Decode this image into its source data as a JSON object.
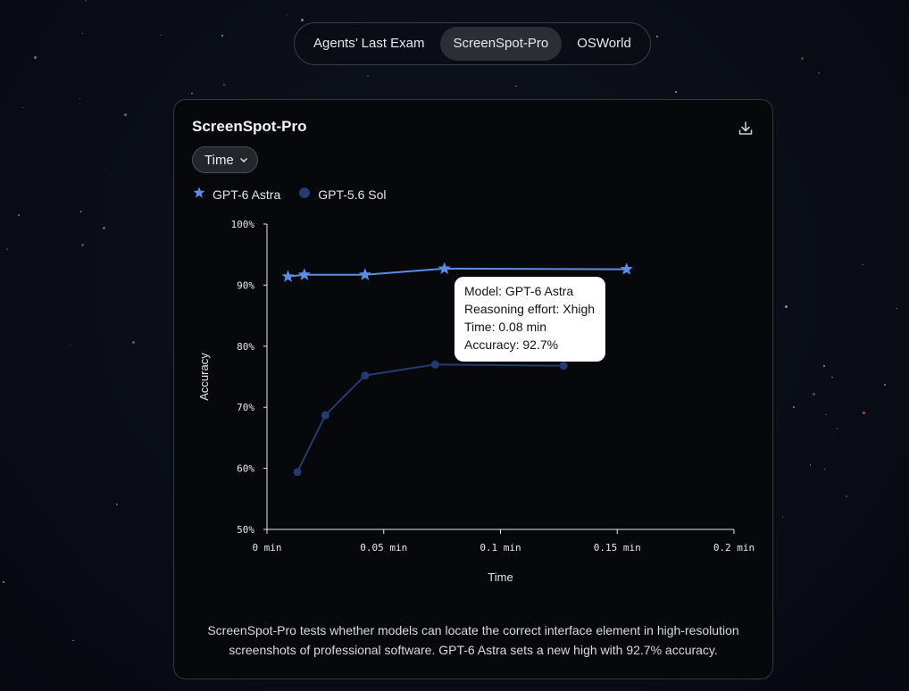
{
  "tabs": [
    {
      "label": "Agents’ Last Exam",
      "active": false
    },
    {
      "label": "ScreenSpot-Pro",
      "active": true
    },
    {
      "label": "OSWorld",
      "active": false
    }
  ],
  "card": {
    "title": "ScreenSpot-Pro",
    "dropdown_value": "Time",
    "download_icon": "download-icon",
    "caption": "ScreenSpot-Pro tests whether models can locate the correct interface element in high-resolution screenshots of professional software. GPT-6 Astra sets a new high with 92.7% accuracy."
  },
  "tooltip": {
    "model": "Model: GPT-6 Astra",
    "effort": "Reasoning effort: Xhigh",
    "time": "Time: 0.08 min",
    "accuracy": "Accuracy: 92.7%"
  },
  "chart_data": {
    "type": "line",
    "xlabel": "Time",
    "ylabel": "Accuracy",
    "xlim": [
      0,
      0.2
    ],
    "ylim": [
      50,
      100
    ],
    "x_ticks": [
      "0 min",
      "0.05 min",
      "0.1 min",
      "0.15 min",
      "0.2 min"
    ],
    "y_ticks": [
      "50%",
      "60%",
      "70%",
      "80%",
      "90%",
      "100%"
    ],
    "grid": false,
    "legend_position": "top-left",
    "series": [
      {
        "name": "GPT-6 Astra",
        "marker": "star",
        "color": "#5b8de3",
        "x": [
          0.009,
          0.016,
          0.042,
          0.076,
          0.154
        ],
        "y": [
          91.4,
          91.7,
          91.7,
          92.7,
          92.6
        ]
      },
      {
        "name": "GPT-5.6 Sol",
        "marker": "circle",
        "color": "#253a6e",
        "x": [
          0.013,
          0.025,
          0.042,
          0.072,
          0.127
        ],
        "y": [
          59.4,
          68.7,
          75.2,
          77.0,
          76.8
        ]
      }
    ]
  }
}
